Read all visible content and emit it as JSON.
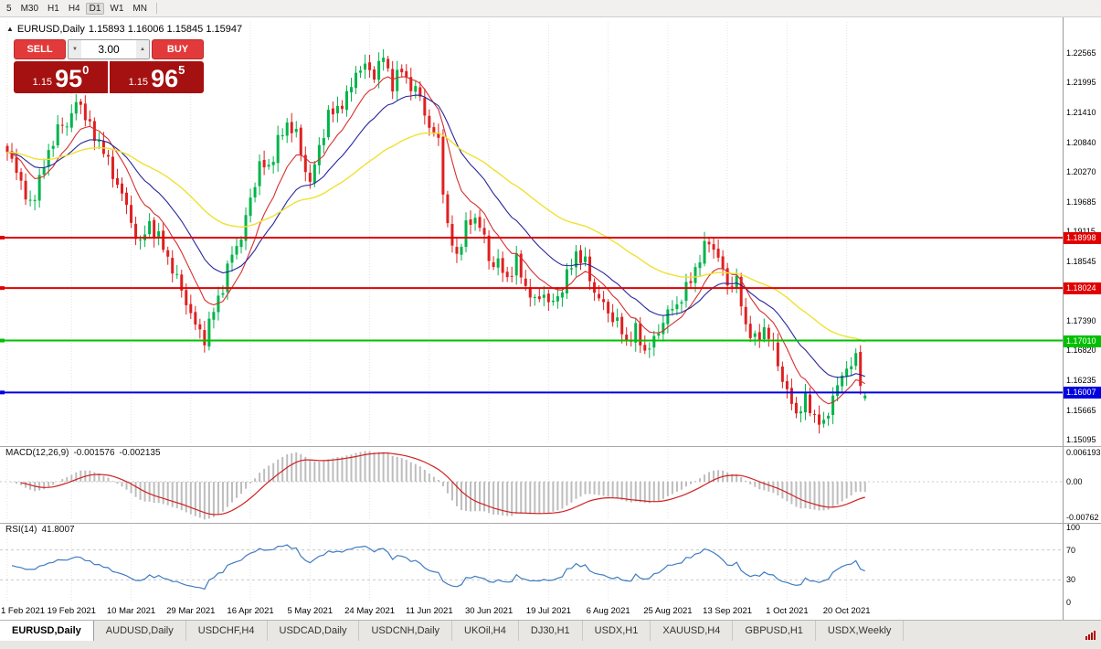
{
  "toolbar": {
    "timeframes": [
      "5",
      "M30",
      "H1",
      "H4",
      "D1",
      "W1",
      "MN"
    ],
    "active": "D1"
  },
  "chart": {
    "title_symbol": "EURUSD,Daily",
    "title_ohlc": "1.15893 1.16006 1.15845 1.15947"
  },
  "trade_panel": {
    "sell_label": "SELL",
    "buy_label": "BUY",
    "volume": "3.00",
    "sell_price": {
      "small": "1.15",
      "big": "95",
      "sup": "0"
    },
    "buy_price": {
      "small": "1.15",
      "big": "96",
      "sup": "5"
    }
  },
  "price_scale": {
    "ticks": [
      "1.22565",
      "1.21995",
      "1.21410",
      "1.20840",
      "1.20270",
      "1.19685",
      "1.19115",
      "1.18545",
      "1.17960",
      "1.17390",
      "1.16820",
      "1.16235",
      "1.15665",
      "1.15095"
    ]
  },
  "date_axis": {
    "labels": [
      "1 Feb 2021",
      "19 Feb 2021",
      "10 Mar 2021",
      "29 Mar 2021",
      "16 Apr 2021",
      "5 May 2021",
      "24 May 2021",
      "11 Jun 2021",
      "30 Jun 2021",
      "19 Jul 2021",
      "6 Aug 2021",
      "25 Aug 2021",
      "13 Sep 2021",
      "1 Oct 2021",
      "20 Oct 2021"
    ]
  },
  "indicators": {
    "macd": {
      "label": "MACD(12,26,9)",
      "value_main": "-0.001576",
      "value_signal": "-0.002135",
      "scale": [
        "0.006193",
        "0.00",
        "-0.00762"
      ]
    },
    "rsi": {
      "label": "RSI(14)",
      "value": "41.8007",
      "scale": [
        "100",
        "70",
        "30",
        "0"
      ]
    }
  },
  "tabs": [
    "EURUSD,Daily",
    "AUDUSD,Daily",
    "USDCHF,H4",
    "USDCAD,Daily",
    "USDCNH,Daily",
    "UKOil,H4",
    "DJ30,H1",
    "USDX,H1",
    "XAUUSD,H4",
    "GBPUSD,H1",
    "USDX,Weekly"
  ],
  "active_tab": "EURUSD,Daily",
  "chart_data": {
    "type": "candlestick",
    "symbol": "EURUSD",
    "period": "Daily",
    "last_ohlc": {
      "open": 1.15893,
      "high": 1.16006,
      "low": 1.15845,
      "close": 1.15947
    },
    "y_axis_range": [
      1.15095,
      1.22565
    ],
    "horizontal_lines": [
      {
        "price": 1.18998,
        "color": "#e10000",
        "label": "1.18998"
      },
      {
        "price": 1.18024,
        "color": "#e10000",
        "label": "1.18024"
      },
      {
        "price": 1.1701,
        "color": "#00c000",
        "label": "1.17010"
      },
      {
        "price": 1.16007,
        "color": "#0000e0",
        "label": "1.16007"
      }
    ],
    "colors": {
      "up": "#00b44b",
      "down": "#df2020",
      "ma_fast": "#d62f2f",
      "ma_mid": "#26269c",
      "ma_slow": "#f0e130",
      "macd_hist": "#bdbdbd",
      "macd_signal": "#d02020",
      "rsi_line": "#3f7cc0"
    },
    "moving_averages": [
      {
        "name": "fast",
        "period": 10
      },
      {
        "name": "mid",
        "period": 22
      },
      {
        "name": "slow",
        "period": 55
      }
    ],
    "candle_count": 188,
    "tick_days": [
      0,
      14,
      27,
      40,
      53,
      66,
      79,
      92,
      105,
      118,
      131,
      144,
      157,
      170,
      183
    ],
    "close_anchors": [
      [
        0,
        1.206
      ],
      [
        2,
        1.2035
      ],
      [
        4,
        1.1975
      ],
      [
        5,
        1.1965
      ],
      [
        7,
        1.201
      ],
      [
        9,
        1.2065
      ],
      [
        11,
        1.211
      ],
      [
        13,
        1.212
      ],
      [
        15,
        1.216
      ],
      [
        17,
        1.214
      ],
      [
        19,
        1.209
      ],
      [
        21,
        1.2075
      ],
      [
        23,
        1.2015
      ],
      [
        25,
        1.199
      ],
      [
        27,
        1.1925
      ],
      [
        29,
        1.189
      ],
      [
        31,
        1.1925
      ],
      [
        33,
        1.19
      ],
      [
        35,
        1.186
      ],
      [
        37,
        1.182
      ],
      [
        39,
        1.1775
      ],
      [
        41,
        1.173
      ],
      [
        43,
        1.1705
      ],
      [
        45,
        1.176
      ],
      [
        47,
        1.1805
      ],
      [
        49,
        1.187
      ],
      [
        51,
        1.19
      ],
      [
        53,
        1.1975
      ],
      [
        55,
        1.204
      ],
      [
        57,
        1.2035
      ],
      [
        59,
        1.2085
      ],
      [
        61,
        1.212
      ],
      [
        63,
        1.21
      ],
      [
        64,
        1.206
      ],
      [
        66,
        1.2005
      ],
      [
        68,
        1.2075
      ],
      [
        70,
        1.2135
      ],
      [
        72,
        1.215
      ],
      [
        74,
        1.217
      ],
      [
        76,
        1.222
      ],
      [
        78,
        1.223
      ],
      [
        80,
        1.2215
      ],
      [
        82,
        1.225
      ],
      [
        84,
        1.2195
      ],
      [
        86,
        1.2225
      ],
      [
        88,
        1.219
      ],
      [
        90,
        1.2175
      ],
      [
        92,
        1.2108
      ],
      [
        94,
        1.209
      ],
      [
        95,
        1.1995
      ],
      [
        96,
        1.1915
      ],
      [
        98,
        1.1865
      ],
      [
        100,
        1.192
      ],
      [
        102,
        1.194
      ],
      [
        104,
        1.19
      ],
      [
        105,
        1.1855
      ],
      [
        107,
        1.185
      ],
      [
        109,
        1.182
      ],
      [
        111,
        1.1855
      ],
      [
        113,
        1.1805
      ],
      [
        115,
        1.1775
      ],
      [
        117,
        1.1795
      ],
      [
        118,
        1.177
      ],
      [
        120,
        1.1785
      ],
      [
        122,
        1.1825
      ],
      [
        124,
        1.187
      ],
      [
        126,
        1.185
      ],
      [
        128,
        1.1795
      ],
      [
        130,
        1.177
      ],
      [
        131,
        1.1755
      ],
      [
        133,
        1.1735
      ],
      [
        135,
        1.17
      ],
      [
        137,
        1.172
      ],
      [
        139,
        1.168
      ],
      [
        141,
        1.17
      ],
      [
        143,
        1.174
      ],
      [
        144,
        1.1755
      ],
      [
        146,
        1.177
      ],
      [
        148,
        1.18
      ],
      [
        150,
        1.184
      ],
      [
        152,
        1.188
      ],
      [
        153,
        1.1895
      ],
      [
        155,
        1.186
      ],
      [
        157,
        1.181
      ],
      [
        159,
        1.1815
      ],
      [
        161,
        1.173
      ],
      [
        163,
        1.17
      ],
      [
        165,
        1.1725
      ],
      [
        167,
        1.169
      ],
      [
        169,
        1.1625
      ],
      [
        170,
        1.16
      ],
      [
        172,
        1.156
      ],
      [
        174,
        1.1585
      ],
      [
        176,
        1.1555
      ],
      [
        178,
        1.1535
      ],
      [
        180,
        1.1595
      ],
      [
        182,
        1.163
      ],
      [
        183,
        1.165
      ],
      [
        185,
        1.1665
      ],
      [
        186,
        1.162
      ],
      [
        187,
        1.1595
      ]
    ]
  }
}
